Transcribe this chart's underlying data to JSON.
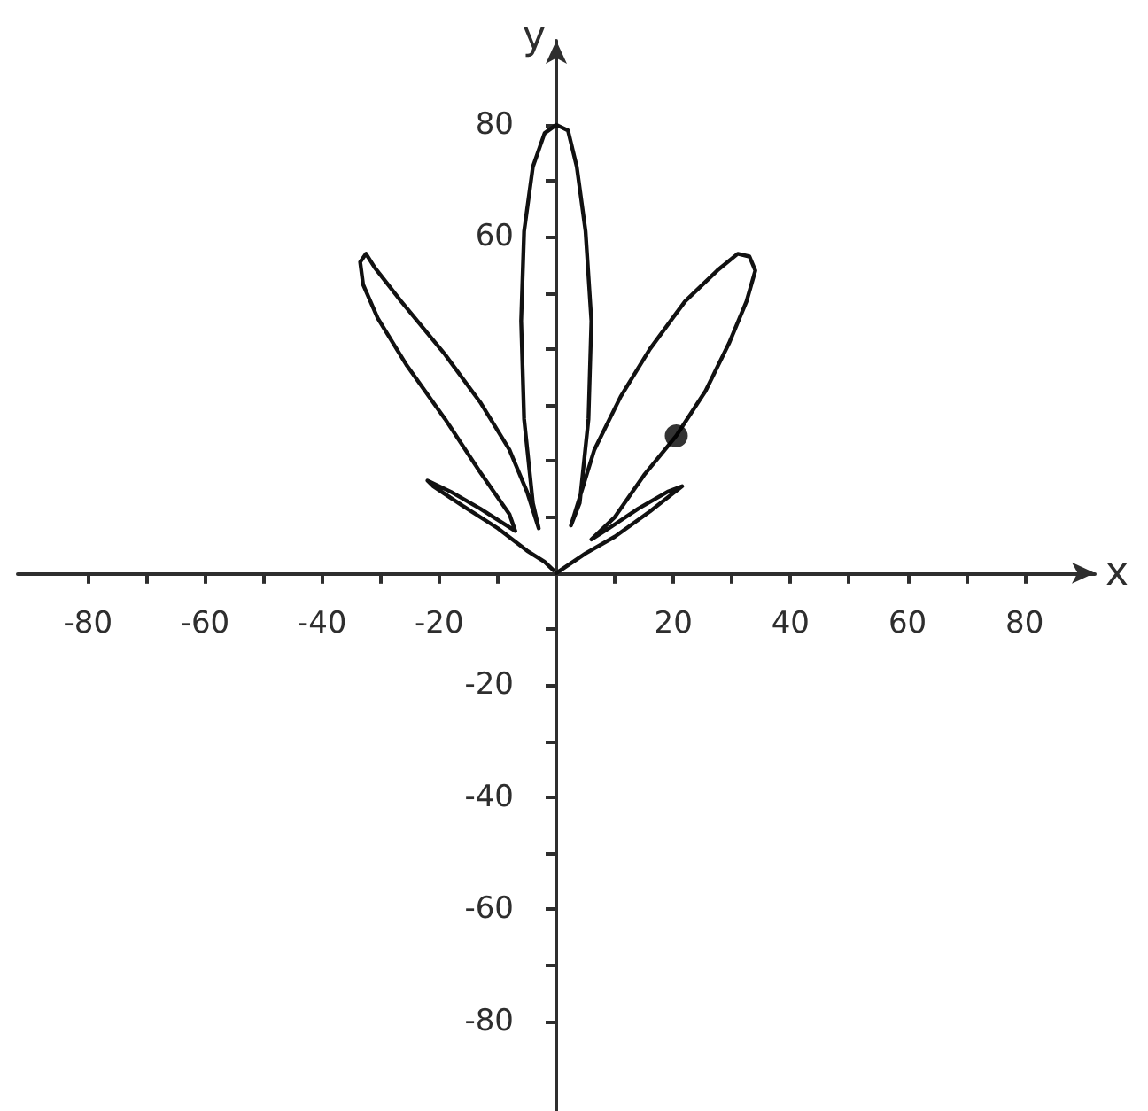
{
  "chart_data": {
    "type": "line",
    "xlabel": "x",
    "ylabel": "y",
    "xlim": [
      -92,
      92
    ],
    "ylim": [
      -96,
      95
    ],
    "xticks": [
      -80,
      {
        "value": -70,
        "label": null
      },
      -60,
      {
        "value": -50,
        "label": null
      },
      -40,
      {
        "value": -30,
        "label": null
      },
      -20,
      {
        "value": -10,
        "label": null
      },
      {
        "value": 10,
        "label": null
      },
      20,
      {
        "value": 30,
        "label": null
      },
      40,
      {
        "value": 50,
        "label": null
      },
      60,
      {
        "value": 70,
        "label": null
      },
      80
    ],
    "yticks": [
      -80,
      {
        "value": -70,
        "label": null
      },
      -60,
      {
        "value": -50,
        "label": null
      },
      -40,
      {
        "value": -30,
        "label": null
      },
      -20,
      {
        "value": -10,
        "label": null
      },
      {
        "value": 10,
        "label": null
      },
      {
        "value": 20,
        "label": null
      },
      {
        "value": 30,
        "label": null
      },
      {
        "value": 40,
        "label": null
      },
      {
        "value": 50,
        "label": null
      },
      60,
      {
        "value": 70,
        "label": null
      },
      80
    ],
    "marker": "none",
    "line_style": "solid",
    "series": [
      {
        "color": "#111111",
        "x": [
          0,
          5,
          10,
          16,
          21.5,
          19,
          14,
          9,
          6,
          10,
          15,
          20.5,
          25.5,
          29.5,
          32.5,
          34,
          33,
          31,
          27.5,
          22,
          16,
          11,
          6.5,
          4,
          2.5,
          4,
          5.5,
          6,
          5,
          3.5,
          2,
          0,
          -2,
          -4,
          -5.5,
          -6,
          -5.5,
          -4,
          -3,
          -5,
          -8,
          -13,
          -19,
          -26.5,
          -31,
          -32.5,
          -33.5,
          -33,
          -30.5,
          -25.5,
          -19,
          -13,
          -8,
          -7,
          -13,
          -18,
          -22,
          -21,
          -16,
          -10,
          -5,
          -2,
          -0.5
        ],
        "values": [
          0,
          3.5,
          6.5,
          11,
          15.5,
          14.5,
          11.5,
          8,
          6,
          10,
          17.5,
          24.5,
          32.5,
          41,
          48.5,
          54,
          56.5,
          57,
          54,
          48.5,
          40,
          31.5,
          22,
          13.5,
          8.5,
          12.5,
          27.5,
          45,
          61,
          72.5,
          79,
          80,
          78.5,
          72.5,
          61,
          45,
          27.5,
          12.5,
          8,
          14.5,
          22,
          30.5,
          39,
          48.5,
          54.5,
          57,
          55.5,
          51.5,
          45.5,
          37,
          27.5,
          18,
          10.5,
          7.5,
          11.5,
          14.5,
          16.5,
          15.5,
          12,
          8,
          4,
          2,
          0.5
        ]
      },
      {
        "type": "scatter",
        "marker": "circle",
        "color": "#000000",
        "x": [
          20.5
        ],
        "values": [
          24.5
        ]
      }
    ]
  }
}
